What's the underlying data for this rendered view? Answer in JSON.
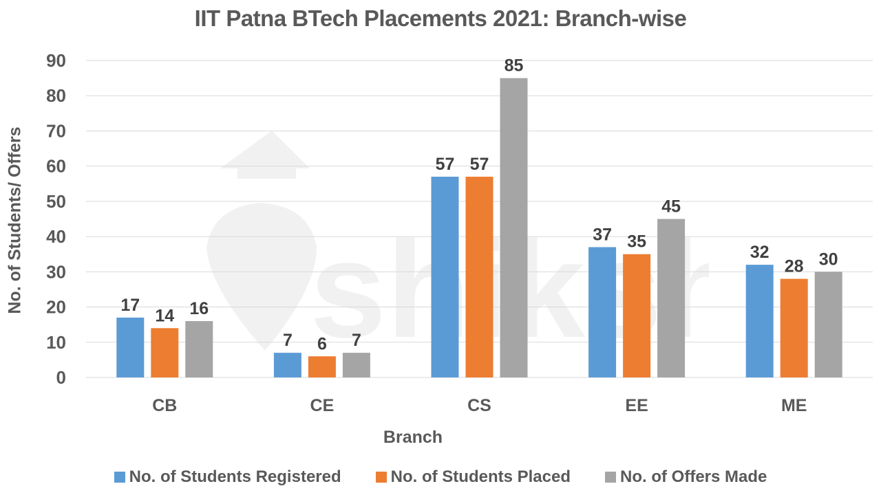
{
  "chart_data": {
    "type": "bar",
    "title": "IIT Patna BTech Placements 2021: Branch-wise",
    "xlabel": "Branch",
    "ylabel": "No. of Students/ Offers",
    "categories": [
      "CB",
      "CE",
      "CS",
      "EE",
      "ME"
    ],
    "series": [
      {
        "name": "No. of Students Registered",
        "color": "#5B9BD5",
        "values": [
          17,
          7,
          57,
          37,
          32
        ]
      },
      {
        "name": "No. of Students Placed",
        "color": "#ED7D31",
        "values": [
          14,
          6,
          57,
          35,
          28
        ]
      },
      {
        "name": "No. of Offers Made",
        "color": "#A5A5A5",
        "values": [
          16,
          7,
          85,
          45,
          30
        ]
      }
    ],
    "ylim": [
      0,
      90
    ],
    "yticks": [
      0,
      10,
      20,
      30,
      40,
      50,
      60,
      70,
      80,
      90
    ],
    "grid": true,
    "data_labels": true,
    "legend_position": "bottom"
  },
  "watermark": {
    "text": "shiksha"
  }
}
